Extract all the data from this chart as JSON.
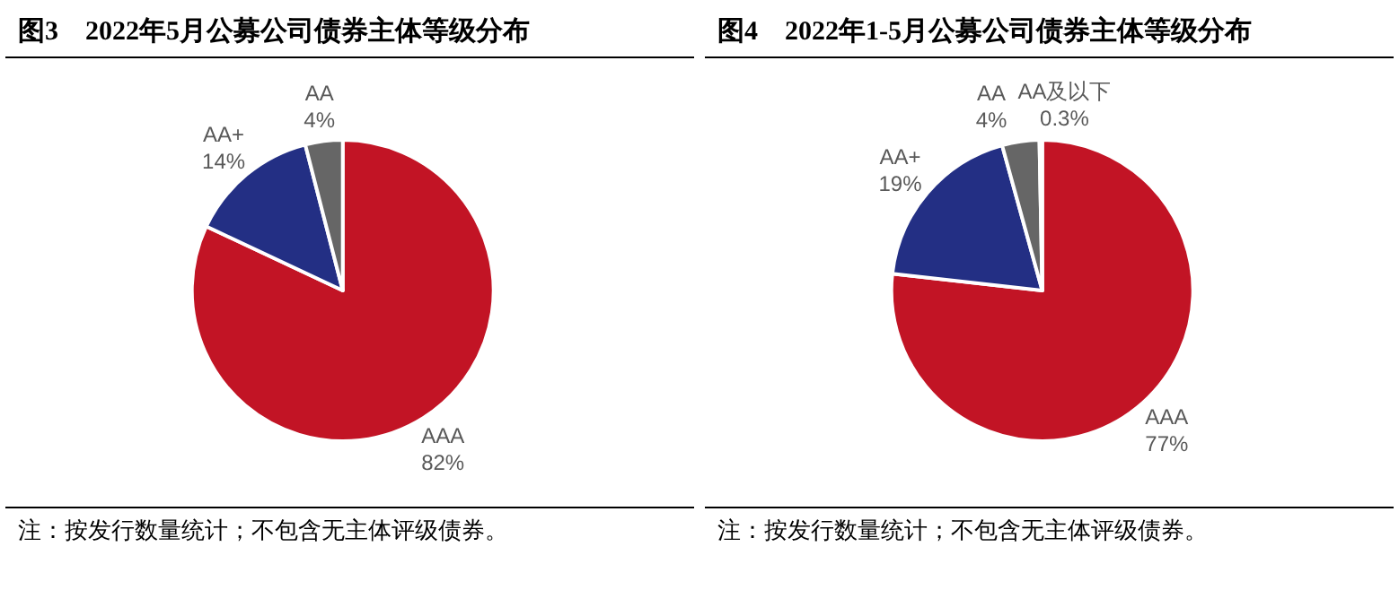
{
  "chart_data": [
    {
      "type": "pie",
      "title": "图3　2022年5月公募公司债券主体等级分布",
      "categories": [
        "AAA",
        "AA+",
        "AA"
      ],
      "values": [
        82,
        14,
        4
      ],
      "value_labels": [
        "82%",
        "14%",
        "4%"
      ],
      "colors": [
        "#c21425",
        "#232f84",
        "#666666"
      ],
      "annotations": [
        "注：按发行数量统计；不包含无主体评级债券。"
      ]
    },
    {
      "type": "pie",
      "title": "图4　2022年1-5月公募公司债券主体等级分布",
      "categories": [
        "AAA",
        "AA+",
        "AA",
        "AA及以下"
      ],
      "values": [
        77,
        19,
        4,
        0.3
      ],
      "value_labels": [
        "77%",
        "19%",
        "4%",
        "0.3%"
      ],
      "colors": [
        "#c21425",
        "#232f84",
        "#666666",
        "#bfbfbf"
      ],
      "annotations": [
        "注：按发行数量统计；不包含无主体评级债券。"
      ]
    }
  ]
}
